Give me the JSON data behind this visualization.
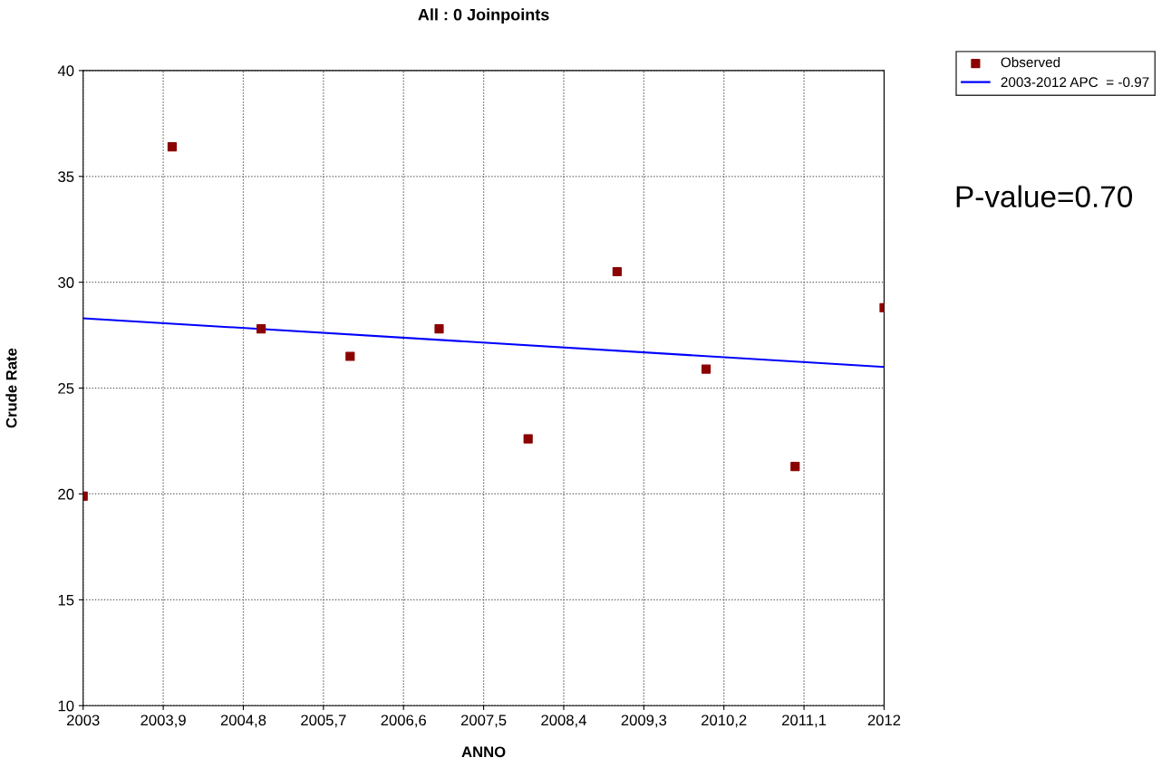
{
  "chart_data": {
    "type": "scatter",
    "title": "All : 0 Joinpoints",
    "xlabel": "ANNO",
    "ylabel": "Crude Rate",
    "x": [
      2003,
      2004,
      2005,
      2006,
      2007,
      2008,
      2009,
      2010,
      2011,
      2012
    ],
    "series": [
      {
        "name": "Observed",
        "color": "#8b0000",
        "marker": "square",
        "values": [
          19.9,
          36.4,
          27.8,
          26.5,
          27.8,
          22.6,
          30.5,
          25.9,
          21.3,
          28.8
        ]
      },
      {
        "name": "2003-2012 APC  = -0.97",
        "type": "line",
        "color": "#0000ff",
        "marker": "none",
        "line_style": "solid",
        "x": [
          2003,
          2012
        ],
        "values": [
          28.3,
          26.0
        ]
      }
    ],
    "xlim": [
      2003,
      2012
    ],
    "xticks": [
      2003,
      {
        "value": 2003.9,
        "label": "2003,9"
      },
      {
        "value": 2004.8,
        "label": "2004,8"
      },
      {
        "value": 2005.7,
        "label": "2005,7"
      },
      {
        "value": 2006.6,
        "label": "2006,6"
      },
      {
        "value": 2007.5,
        "label": "2007,5"
      },
      {
        "value": 2008.4,
        "label": "2008,4"
      },
      {
        "value": 2009.3,
        "label": "2009,3"
      },
      {
        "value": 2010.2,
        "label": "2010,2"
      },
      {
        "value": 2011.1,
        "label": "2011,1"
      },
      2012
    ],
    "ylim": [
      10,
      40
    ],
    "yticks": [
      10,
      15,
      20,
      25,
      30,
      35,
      40
    ],
    "grid": true,
    "legend": "top right",
    "annotations": [
      "P-value=0.70"
    ]
  }
}
